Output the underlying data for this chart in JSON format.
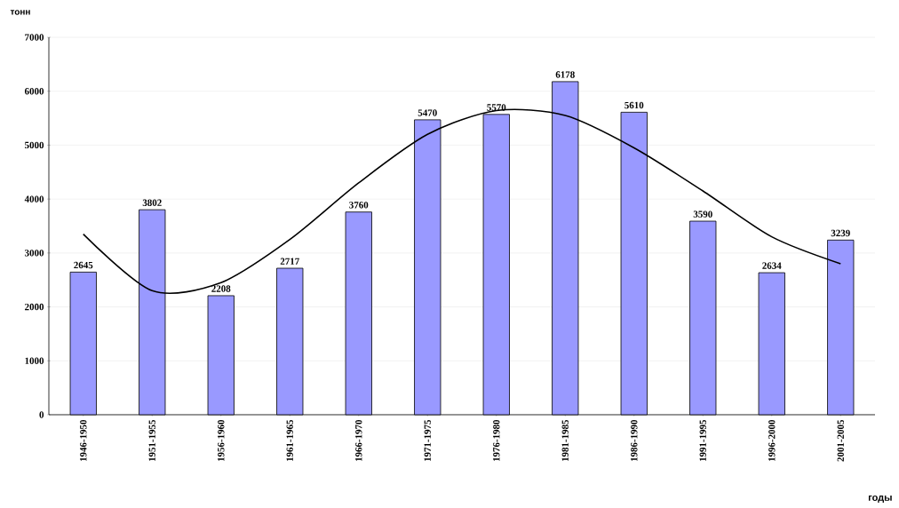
{
  "chart_data": {
    "type": "bar",
    "ylabel": "тонн",
    "xlabel": "годы",
    "categories": [
      "1946-1950",
      "1951-1955",
      "1956-1960",
      "1961-1965",
      "1966-1970",
      "1971-1975",
      "1976-1980",
      "1981-1985",
      "1986-1990",
      "1991-1995",
      "1996-2000",
      "2001-2005"
    ],
    "series": [
      {
        "color": "#9999ff",
        "values": [
          2645,
          3802,
          2208,
          2717,
          3760,
          5470,
          5570,
          6178,
          5610,
          3590,
          2634,
          3239
        ],
        "value_labels": [
          "2645",
          "3802",
          "2208",
          "2717",
          "3760",
          "5470",
          "5570",
          "6178",
          "5610",
          "3590",
          "2634",
          "3239"
        ]
      },
      {
        "type": "line",
        "color": "#000000",
        "values": [
          3350,
          2300,
          2450,
          3250,
          4300,
          5200,
          5640,
          5550,
          4950,
          4150,
          3300,
          2800
        ]
      }
    ],
    "ylim": [
      0,
      7000
    ],
    "yticks": [
      0,
      1000,
      2000,
      3000,
      4000,
      5000,
      6000,
      7000
    ],
    "grid": "y"
  }
}
